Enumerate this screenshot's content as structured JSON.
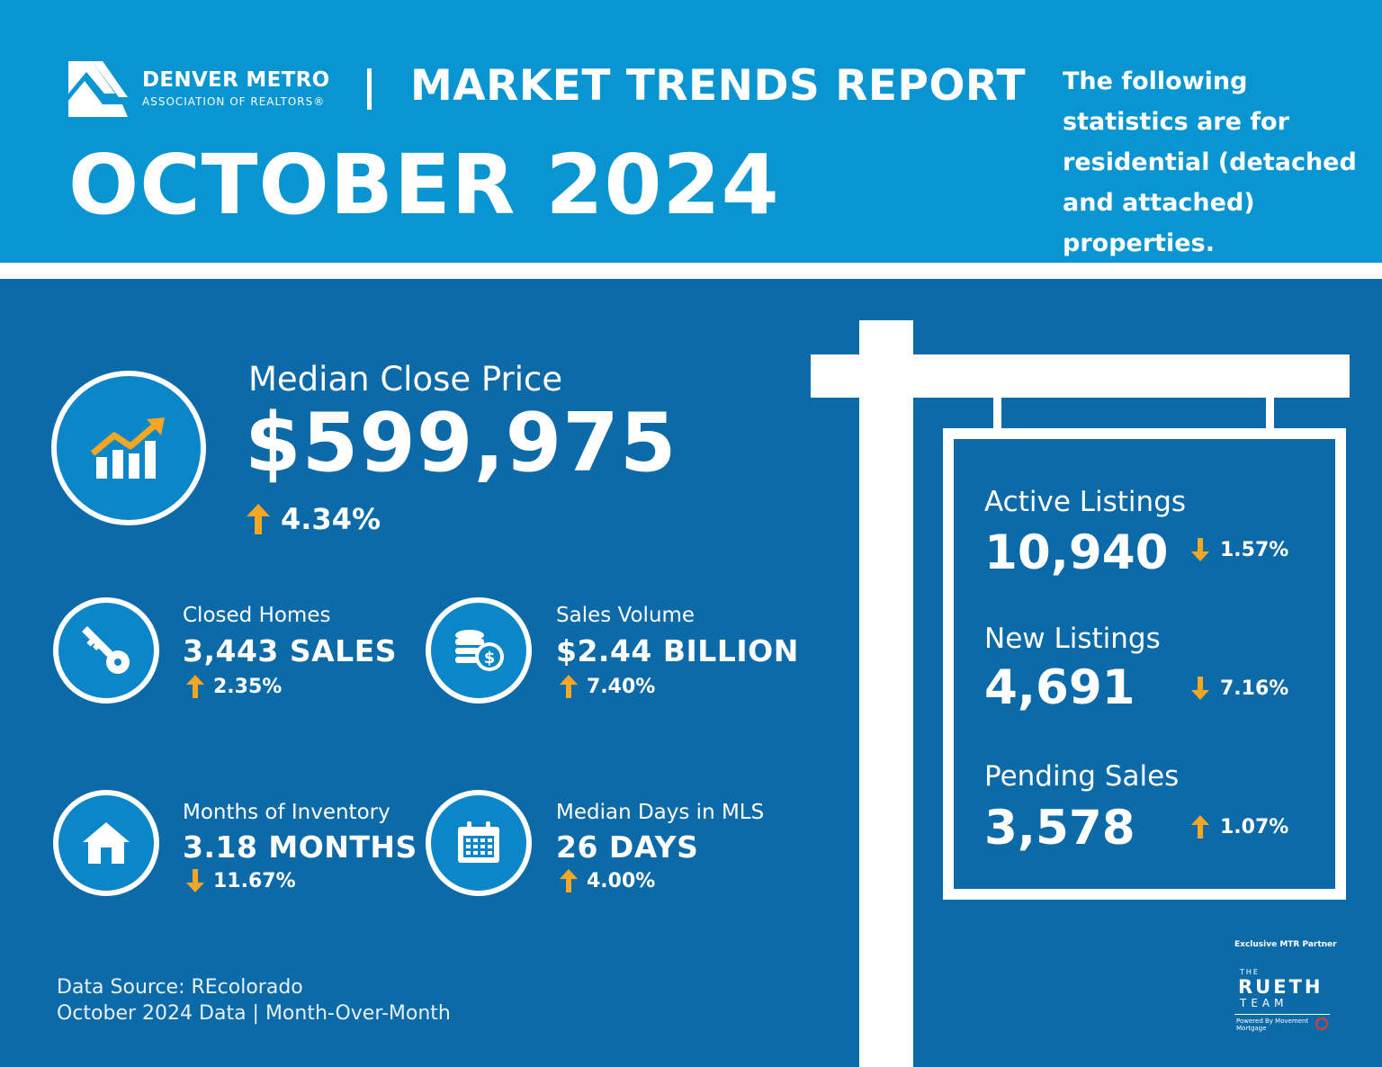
{
  "header": {
    "org_name": "DENVER METRO",
    "org_sub": "ASSOCIATION OF REALTORS®",
    "report_title": "MARKET TRENDS REPORT",
    "month": "OCTOBER 2024",
    "note": "The following statistics are for residential (detached and attached) properties."
  },
  "colors": {
    "header_bg": "#0895d2",
    "main_bg": "#0d6aa8",
    "accent_orange": "#f5a623",
    "white": "#ffffff"
  },
  "median_close_price": {
    "label": "Median Close Price",
    "value": "$599,975",
    "change": "4.34%",
    "direction": "up",
    "icon": "chart-growth-icon"
  },
  "stats": {
    "closed_homes": {
      "label": "Closed Homes",
      "value": "3,443 SALES",
      "change": "2.35%",
      "direction": "up",
      "icon": "key-icon"
    },
    "sales_volume": {
      "label": "Sales Volume",
      "value": "$2.44 BILLION",
      "change": "7.40%",
      "direction": "up",
      "icon": "coins-icon"
    },
    "months_inventory": {
      "label": "Months of Inventory",
      "value": "3.18 MONTHS",
      "change": "11.67%",
      "direction": "down",
      "icon": "house-icon"
    },
    "median_days": {
      "label": "Median Days in MLS",
      "value": "26 DAYS",
      "change": "4.00%",
      "direction": "up",
      "icon": "calendar-icon"
    }
  },
  "sign": {
    "active_listings": {
      "label": "Active Listings",
      "value": "10,940",
      "change": "1.57%",
      "direction": "down"
    },
    "new_listings": {
      "label": "New Listings",
      "value": "4,691",
      "change": "7.16%",
      "direction": "down"
    },
    "pending_sales": {
      "label": "Pending Sales",
      "value": "3,578",
      "change": "1.07%",
      "direction": "up"
    }
  },
  "footer": {
    "source": "Data Source: REcolorado",
    "period": "October 2024 Data | Month-Over-Month"
  },
  "partner": {
    "label": "Exclusive MTR Partner",
    "the": "THE",
    "name": "RUETH",
    "team": "TEAM",
    "powered": "Powered By Movement Mortgage"
  }
}
